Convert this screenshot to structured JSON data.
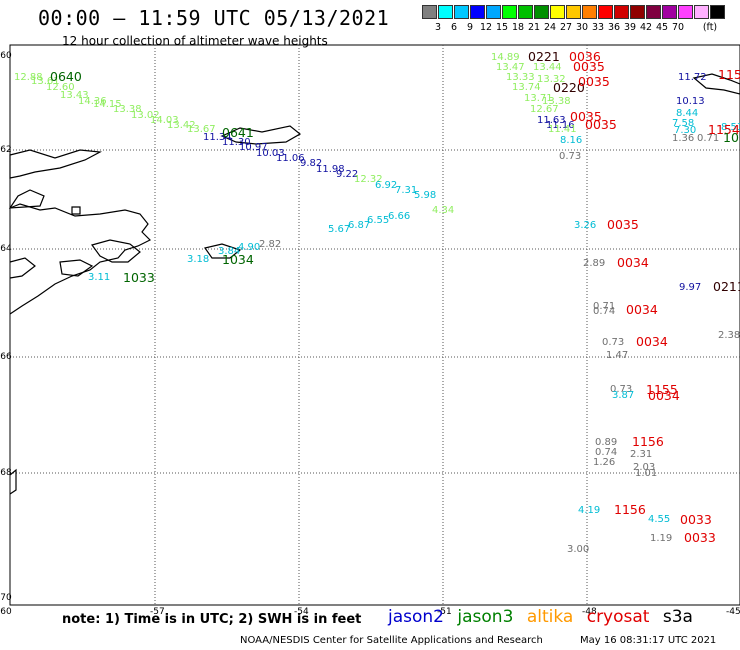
{
  "header": {
    "title": "00:00 – 11:59 UTC 05/13/2021",
    "subtitle": "12 hour collection of altimeter wave heights"
  },
  "legend": {
    "unit": "(ft)",
    "colors": [
      "#808080",
      "#00ffff",
      "#00c8ff",
      "#0000ff",
      "#00a8ff",
      "#00ff00",
      "#00c000",
      "#009000",
      "#ffff00",
      "#ffc800",
      "#ff7f00",
      "#ff0000",
      "#d00000",
      "#900000",
      "#7f0040",
      "#a000a0",
      "#ff40ff",
      "#ffb0ff",
      "#000000"
    ],
    "labels": [
      "3",
      "6",
      "9",
      "12",
      "15",
      "18",
      "21",
      "24",
      "27",
      "30",
      "33",
      "36",
      "39",
      "42",
      "45",
      "70"
    ]
  },
  "axes": {
    "lat_labels": [
      "-60",
      "-62",
      "-64",
      "-66",
      "-68",
      "-70"
    ],
    "lon_labels": [
      "-57",
      "-54",
      "-51",
      "-48",
      "-45"
    ],
    "bottom_left": "-60"
  },
  "chart_data": {
    "type": "scatter",
    "map_extent": {
      "lon": [
        -60,
        -45
      ],
      "lat": [
        -70,
        -60
      ]
    },
    "points": [
      {
        "v": "12.88",
        "color": "#90ee60"
      },
      {
        "v": "13.61",
        "color": "#90ee60"
      },
      {
        "v": "12.60",
        "color": "#90ee60"
      },
      {
        "v": "13.43",
        "color": "#90ee60"
      },
      {
        "v": "14.36",
        "color": "#90ee60"
      },
      {
        "v": "14.15",
        "color": "#90ee60"
      },
      {
        "v": "13.38",
        "color": "#90ee60"
      },
      {
        "v": "13.02",
        "color": "#90ee60"
      },
      {
        "v": "14.03",
        "color": "#90ee60"
      },
      {
        "v": "13.42",
        "color": "#90ee60"
      },
      {
        "v": "13.67",
        "color": "#90ee60"
      },
      {
        "v": "11.34",
        "color": "#1010a0"
      },
      {
        "v": "11.30",
        "color": "#1010a0"
      },
      {
        "v": "10.97",
        "color": "#1010a0"
      },
      {
        "v": "10.03",
        "color": "#1010a0"
      },
      {
        "v": "11.06",
        "color": "#1010a0"
      },
      {
        "v": "9.82",
        "color": "#1010a0"
      },
      {
        "v": "11.98",
        "color": "#1010a0"
      },
      {
        "v": "9.22",
        "color": "#1010a0"
      },
      {
        "v": "12.32",
        "color": "#90ee60"
      },
      {
        "v": "6.92",
        "color": "#00bcd4"
      },
      {
        "v": "7.31",
        "color": "#00bcd4"
      },
      {
        "v": "5.98",
        "color": "#00bcd4"
      },
      {
        "v": "4.34",
        "color": "#90ee60"
      },
      {
        "v": "6.66",
        "color": "#00bcd4"
      },
      {
        "v": "6.55",
        "color": "#00bcd4"
      },
      {
        "v": "6.87",
        "color": "#00bcd4"
      },
      {
        "v": "5.67",
        "color": "#00bcd4"
      },
      {
        "v": "2.82",
        "color": "#707070"
      },
      {
        "v": "4.90",
        "color": "#00bcd4"
      },
      {
        "v": "3.84",
        "color": "#00bcd4"
      },
      {
        "v": "3.18",
        "color": "#00bcd4"
      },
      {
        "v": "3.11",
        "color": "#00bcd4"
      },
      {
        "v": "14.89",
        "color": "#90ee60"
      },
      {
        "v": "13.47",
        "color": "#90ee60"
      },
      {
        "v": "13.44",
        "color": "#90ee60"
      },
      {
        "v": "13.33",
        "color": "#90ee60"
      },
      {
        "v": "13.32",
        "color": "#90ee60"
      },
      {
        "v": "13.74",
        "color": "#90ee60"
      },
      {
        "v": "13.71",
        "color": "#90ee60"
      },
      {
        "v": "13.38",
        "color": "#90ee60"
      },
      {
        "v": "12.67",
        "color": "#90ee60"
      },
      {
        "v": "11.63",
        "color": "#1010a0"
      },
      {
        "v": "11.16",
        "color": "#1010a0"
      },
      {
        "v": "11.41",
        "color": "#90ee60"
      },
      {
        "v": "8.16",
        "color": "#00bcd4"
      },
      {
        "v": "0.73",
        "color": "#707070"
      },
      {
        "v": "11.72",
        "color": "#1010a0"
      },
      {
        "v": "10.13",
        "color": "#1010a0"
      },
      {
        "v": "8.44",
        "color": "#00bcd4"
      },
      {
        "v": "7.58",
        "color": "#00bcd4"
      },
      {
        "v": "7.30",
        "color": "#00bcd4"
      },
      {
        "v": "1.36",
        "color": "#707070"
      },
      {
        "v": "0.71",
        "color": "#707070"
      },
      {
        "v": "8.53",
        "color": "#00bcd4"
      },
      {
        "v": "3.26",
        "color": "#00bcd4"
      },
      {
        "v": "2.89",
        "color": "#707070"
      },
      {
        "v": "9.97",
        "color": "#1010a0"
      },
      {
        "v": "0.71",
        "color": "#707070"
      },
      {
        "v": "0.74",
        "color": "#707070"
      },
      {
        "v": "2.38",
        "color": "#707070"
      },
      {
        "v": "0.73",
        "color": "#707070"
      },
      {
        "v": "1.47",
        "color": "#707070"
      },
      {
        "v": "0.73",
        "color": "#707070"
      },
      {
        "v": "3.87",
        "color": "#00bcd4"
      },
      {
        "v": "0.89",
        "color": "#707070"
      },
      {
        "v": "0.74",
        "color": "#707070"
      },
      {
        "v": "2.31",
        "color": "#707070"
      },
      {
        "v": "1.26",
        "color": "#707070"
      },
      {
        "v": "2.03",
        "color": "#707070"
      },
      {
        "v": "1.01",
        "color": "#707070"
      },
      {
        "v": "4.19",
        "color": "#00bcd4"
      },
      {
        "v": "4.55",
        "color": "#00bcd4"
      },
      {
        "v": "1.19",
        "color": "#707070"
      },
      {
        "v": "3.00",
        "color": "#707070"
      }
    ],
    "times": [
      {
        "t": "0640",
        "color": "#006400"
      },
      {
        "t": "0641",
        "color": "#006400"
      },
      {
        "t": "1034",
        "color": "#006400"
      },
      {
        "t": "1033",
        "color": "#006400"
      },
      {
        "t": "0221",
        "color": "#300000"
      },
      {
        "t": "0036",
        "color": "#e00000"
      },
      {
        "t": "0035",
        "color": "#e00000"
      },
      {
        "t": "0220",
        "color": "#300000"
      },
      {
        "t": "0035",
        "color": "#e00000"
      },
      {
        "t": "0035",
        "color": "#e00000"
      },
      {
        "t": "0035",
        "color": "#e00000"
      },
      {
        "t": "115",
        "color": "#e00000"
      },
      {
        "t": "1154",
        "color": "#e00000"
      },
      {
        "t": "103",
        "color": "#006400"
      },
      {
        "t": "0035",
        "color": "#e00000"
      },
      {
        "t": "0034",
        "color": "#e00000"
      },
      {
        "t": "0211",
        "color": "#300000"
      },
      {
        "t": "0034",
        "color": "#e00000"
      },
      {
        "t": "0034",
        "color": "#e00000"
      },
      {
        "t": "1155",
        "color": "#e00000"
      },
      {
        "t": "0034",
        "color": "#e00000"
      },
      {
        "t": "1156",
        "color": "#e00000"
      },
      {
        "t": "1156",
        "color": "#e00000"
      },
      {
        "t": "0033",
        "color": "#e00000"
      },
      {
        "t": "0033",
        "color": "#e00000"
      }
    ]
  },
  "footer": {
    "note": "note: 1) Time is in UTC; 2) SWH is in feet",
    "satellites": [
      {
        "name": "jason2",
        "color": "#0000cc"
      },
      {
        "name": "jason3",
        "color": "#008000"
      },
      {
        "name": "altika",
        "color": "#ff9900"
      },
      {
        "name": "cryosat",
        "color": "#e00000"
      },
      {
        "name": "s3a",
        "color": "#000000"
      }
    ],
    "credit": "NOAA/NESDIS Center for Satellite Applications and Research",
    "timestamp": "May 16 08:31:17 UTC 2021"
  }
}
